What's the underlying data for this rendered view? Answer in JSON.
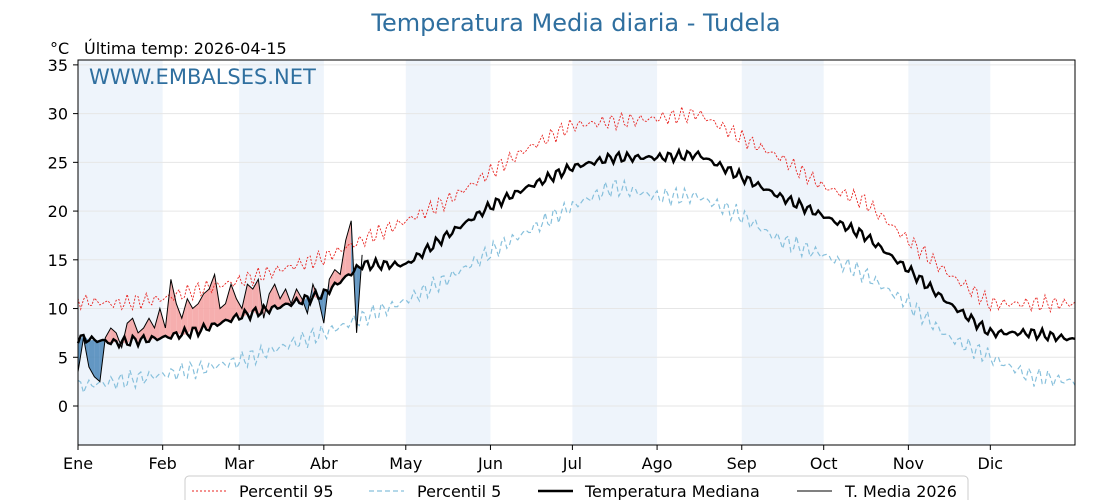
{
  "chart_data": {
    "type": "line",
    "title": "Temperatura Media diaria - Tudela",
    "unit_label": "°C",
    "last_temp_label": "Última temp: 2026-04-15",
    "watermark": "WWW.EMBALSES.NET",
    "xlabel": "",
    "ylabel": "°C",
    "ylim": [
      -4,
      35.5
    ],
    "xlim": [
      1,
      366
    ],
    "yticks": [
      0,
      5,
      10,
      15,
      20,
      25,
      30,
      35
    ],
    "months": [
      "Ene",
      "Feb",
      "Mar",
      "Abr",
      "May",
      "Jun",
      "Jul",
      "Ago",
      "Sep",
      "Oct",
      "Nov",
      "Dic"
    ],
    "month_start_days": [
      1,
      32,
      60,
      91,
      121,
      152,
      182,
      213,
      244,
      274,
      305,
      335
    ],
    "grid": true,
    "legend_position": "bottom-center",
    "colors": {
      "p95": "#e8231f",
      "p5": "#87c0dc",
      "median": "#000000",
      "current": "#000000",
      "above": "#f4a0a0",
      "below": "#4a86b8",
      "band": "#eef4fb",
      "title": "#2f6f9f"
    },
    "series": [
      {
        "name": "Percentil 95",
        "x": [
          1,
          15,
          32,
          46,
          60,
          75,
          91,
          105,
          121,
          136,
          152,
          166,
          182,
          197,
          213,
          228,
          244,
          258,
          274,
          289,
          305,
          320,
          335,
          350,
          366
        ],
        "values": [
          10.8,
          10.5,
          11.0,
          12.0,
          12.8,
          14.0,
          15.2,
          17.0,
          19.0,
          21.0,
          24.0,
          26.5,
          28.8,
          29.2,
          29.5,
          30.0,
          27.5,
          25.5,
          22.5,
          21.0,
          17.0,
          13.5,
          10.5,
          10.5,
          10.5
        ]
      },
      {
        "name": "Percentil 5",
        "x": [
          1,
          15,
          32,
          46,
          60,
          75,
          91,
          105,
          121,
          136,
          152,
          166,
          182,
          197,
          213,
          228,
          244,
          258,
          274,
          289,
          305,
          320,
          335,
          350,
          366
        ],
        "values": [
          2.0,
          2.5,
          3.2,
          3.8,
          4.6,
          6.0,
          7.5,
          9.0,
          10.8,
          13.0,
          15.8,
          18.0,
          20.5,
          22.5,
          21.5,
          21.5,
          19.5,
          17.0,
          15.5,
          13.5,
          10.5,
          7.0,
          5.0,
          3.0,
          2.5
        ]
      },
      {
        "name": "Temperatura Mediana",
        "x": [
          1,
          15,
          32,
          46,
          60,
          75,
          91,
          105,
          121,
          136,
          152,
          166,
          182,
          197,
          213,
          228,
          244,
          258,
          274,
          289,
          305,
          320,
          335,
          350,
          366
        ],
        "values": [
          7.0,
          6.5,
          7.0,
          7.8,
          9.2,
          10.2,
          11.5,
          14.5,
          14.5,
          17.5,
          20.5,
          22.5,
          24.5,
          25.5,
          25.5,
          25.8,
          23.5,
          21.5,
          19.5,
          17.5,
          14.0,
          10.5,
          7.5,
          7.5,
          6.8
        ]
      },
      {
        "name": "T. Media 2026",
        "x": [
          1,
          3,
          5,
          7,
          9,
          11,
          13,
          15,
          17,
          19,
          21,
          23,
          25,
          27,
          29,
          31,
          33,
          35,
          37,
          39,
          41,
          43,
          45,
          47,
          49,
          51,
          53,
          55,
          57,
          59,
          61,
          63,
          65,
          67,
          69,
          71,
          73,
          75,
          77,
          79,
          81,
          83,
          85,
          87,
          89,
          91,
          93,
          95,
          97,
          99,
          101,
          103,
          105
        ],
        "values": [
          3.5,
          7.0,
          4.0,
          3.0,
          2.5,
          7.0,
          8.0,
          7.5,
          6.0,
          8.5,
          9.0,
          7.5,
          8.0,
          9.0,
          8.0,
          10.0,
          8.0,
          13.0,
          10.5,
          9.0,
          11.0,
          10.0,
          10.5,
          11.5,
          12.0,
          13.5,
          10.0,
          10.5,
          12.5,
          11.0,
          10.0,
          12.5,
          12.0,
          13.0,
          9.0,
          11.5,
          12.5,
          11.0,
          12.0,
          10.5,
          12.0,
          11.0,
          9.5,
          12.5,
          11.0,
          8.5,
          13.0,
          14.0,
          13.5,
          17.0,
          19.0,
          7.5,
          15.5
        ]
      }
    ]
  }
}
